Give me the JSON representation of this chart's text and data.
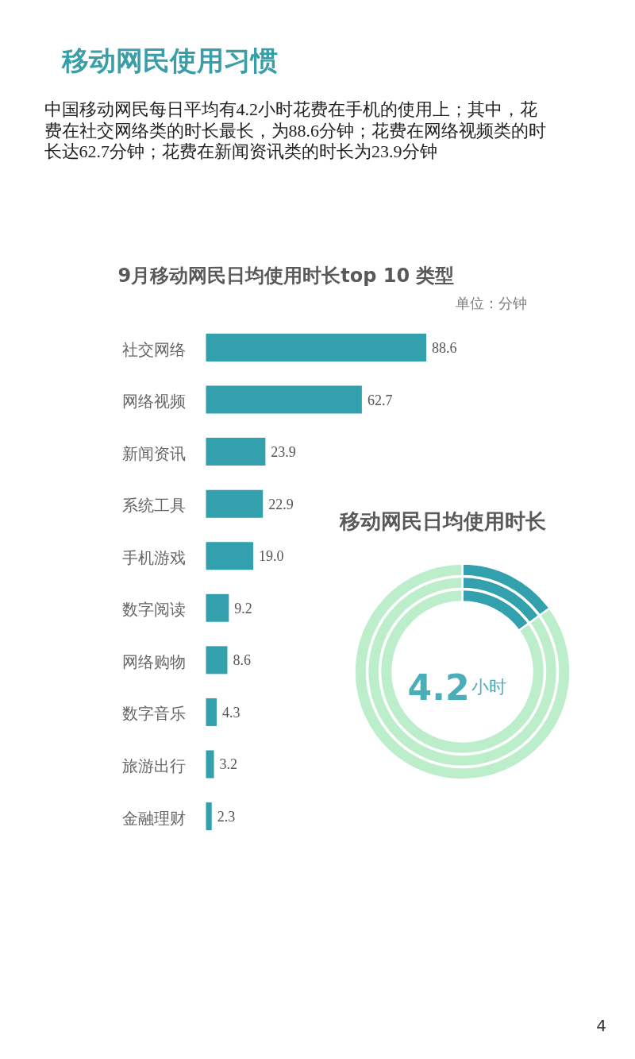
{
  "chart_data": [
    {
      "type": "other",
      "title": "移动网民使用习惯",
      "annotations": [
        "中国移动网民每日平均有4.2小时花费在手机的使用上；其中，花费在社交网络类的时长最长，为88.6分钟；花费在网络视频类的时长达62.7分钟；花费在新闻资讯类的时长为23.9分钟",
        "4"
      ]
    },
    {
      "type": "bar",
      "orientation": "horizontal",
      "title": "9月移动网民日均使用时长top 10 类型",
      "annotations": [
        "单位：分钟"
      ],
      "categories": [
        "社交网络",
        "网络视频",
        "新闻资讯",
        "系统工具",
        "手机游戏",
        "数字阅读",
        "网络购物",
        "数字音乐",
        "旅游出行",
        "金融理财"
      ],
      "values": [
        88.6,
        62.7,
        23.9,
        22.9,
        19.0,
        9.2,
        8.6,
        4.3,
        3.2,
        2.3
      ],
      "value_labels": [
        "88.6",
        "62.7",
        "23.9",
        "22.9",
        "19.0",
        "9.2",
        "8.6",
        "4.3",
        "3.2",
        "2.3"
      ],
      "color": "#33a0ae"
    },
    {
      "type": "donut",
      "title": "移动网民日均使用时长",
      "categories": [
        null,
        null
      ],
      "values": [
        15,
        85
      ],
      "colors": [
        "#33a0ae",
        "#bdeecb"
      ],
      "annotations": [
        "4.2",
        "小时"
      ]
    }
  ]
}
